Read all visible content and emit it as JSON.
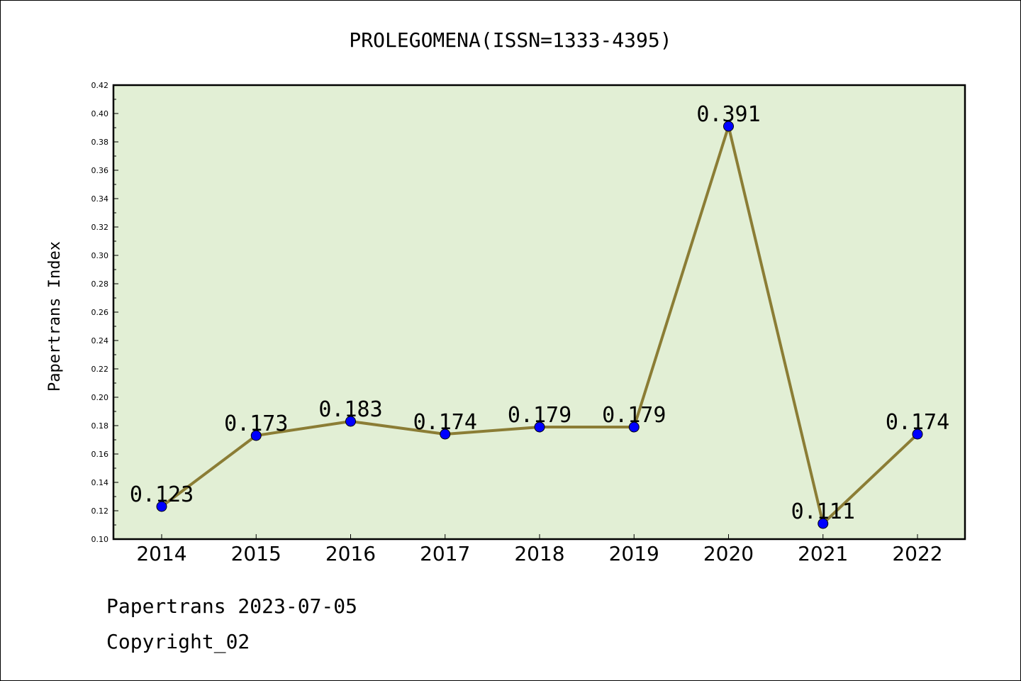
{
  "chart_data": {
    "type": "line",
    "title": "PROLEGOMENA(ISSN=1333-4395)",
    "ylabel": "Papertrans Index",
    "xlabel": "",
    "categories": [
      "2014",
      "2015",
      "2016",
      "2017",
      "2018",
      "2019",
      "2020",
      "2021",
      "2022"
    ],
    "values": [
      0.123,
      0.173,
      0.183,
      0.174,
      0.179,
      0.179,
      0.391,
      0.111,
      0.174
    ],
    "data_labels": [
      "0.123",
      "0.173",
      "0.183",
      "0.174",
      "0.179",
      "0.179",
      "0.391",
      "0.111",
      "0.174"
    ],
    "ylim": [
      0.1,
      0.42
    ],
    "yticks": [
      "0.10",
      "0.12",
      "0.14",
      "0.16",
      "0.18",
      "0.20",
      "0.22",
      "0.24",
      "0.26",
      "0.28",
      "0.30",
      "0.32",
      "0.34",
      "0.36",
      "0.38",
      "0.40",
      "0.42"
    ],
    "grid": false,
    "colors": {
      "plot_background": "#e2efd5",
      "line": "#8b7d35",
      "marker": "#0000ff"
    }
  },
  "footer": {
    "line1": "Papertrans 2023-07-05",
    "line2": "Copyright_02"
  }
}
